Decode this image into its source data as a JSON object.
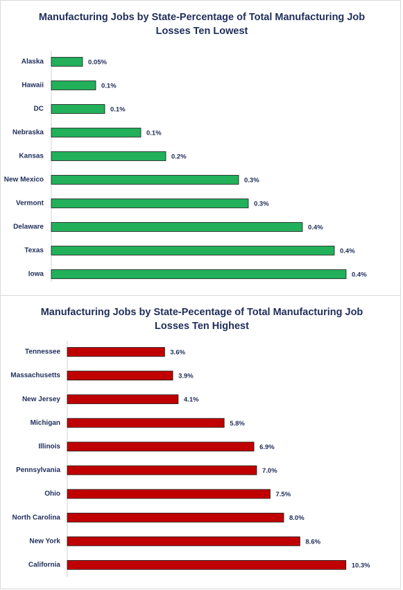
{
  "chart_data": [
    {
      "type": "bar",
      "title": "Manufacturing Jobs by State-Percentage of Total Manufacturing Job Losses Ten Lowest",
      "categories": [
        "Alaska",
        "Hawaii",
        "DC",
        "Nebraska",
        "Kansas",
        "New Mexico",
        "Vermont",
        "Delaware",
        "Texas",
        "Iowa"
      ],
      "values": [
        0.045,
        0.064,
        0.077,
        0.129,
        0.165,
        0.27,
        0.284,
        0.362,
        0.408,
        0.425
      ],
      "value_labels": [
        "0.05%",
        "0.1%",
        "0.1%",
        "0.1%",
        "0.2%",
        "0.3%",
        "0.3%",
        "0.4%",
        "0.4%",
        "0.4%"
      ],
      "color": "#22b05a",
      "xlim": [
        0,
        0.5
      ]
    },
    {
      "type": "bar",
      "title": "Manufacturing Jobs by State-Pecentage of Total Manufacturing Job Losses Ten Highest",
      "categories": [
        "Tennessee",
        "Massachusetts",
        "New Jersey",
        "Michigan",
        "Illinois",
        "Pennsylvania",
        "Ohio",
        "North Carolina",
        "New York",
        "California"
      ],
      "values": [
        3.6,
        3.9,
        4.1,
        5.8,
        6.9,
        7.0,
        7.5,
        8.0,
        8.6,
        10.3
      ],
      "value_labels": [
        "3.6%",
        "3.9%",
        "4.1%",
        "5.8%",
        "6.9%",
        "7.0%",
        "7.5%",
        "8.0%",
        "8.6%",
        "10.3%"
      ],
      "color": "#c00000",
      "xlim": [
        0,
        12
      ]
    }
  ]
}
